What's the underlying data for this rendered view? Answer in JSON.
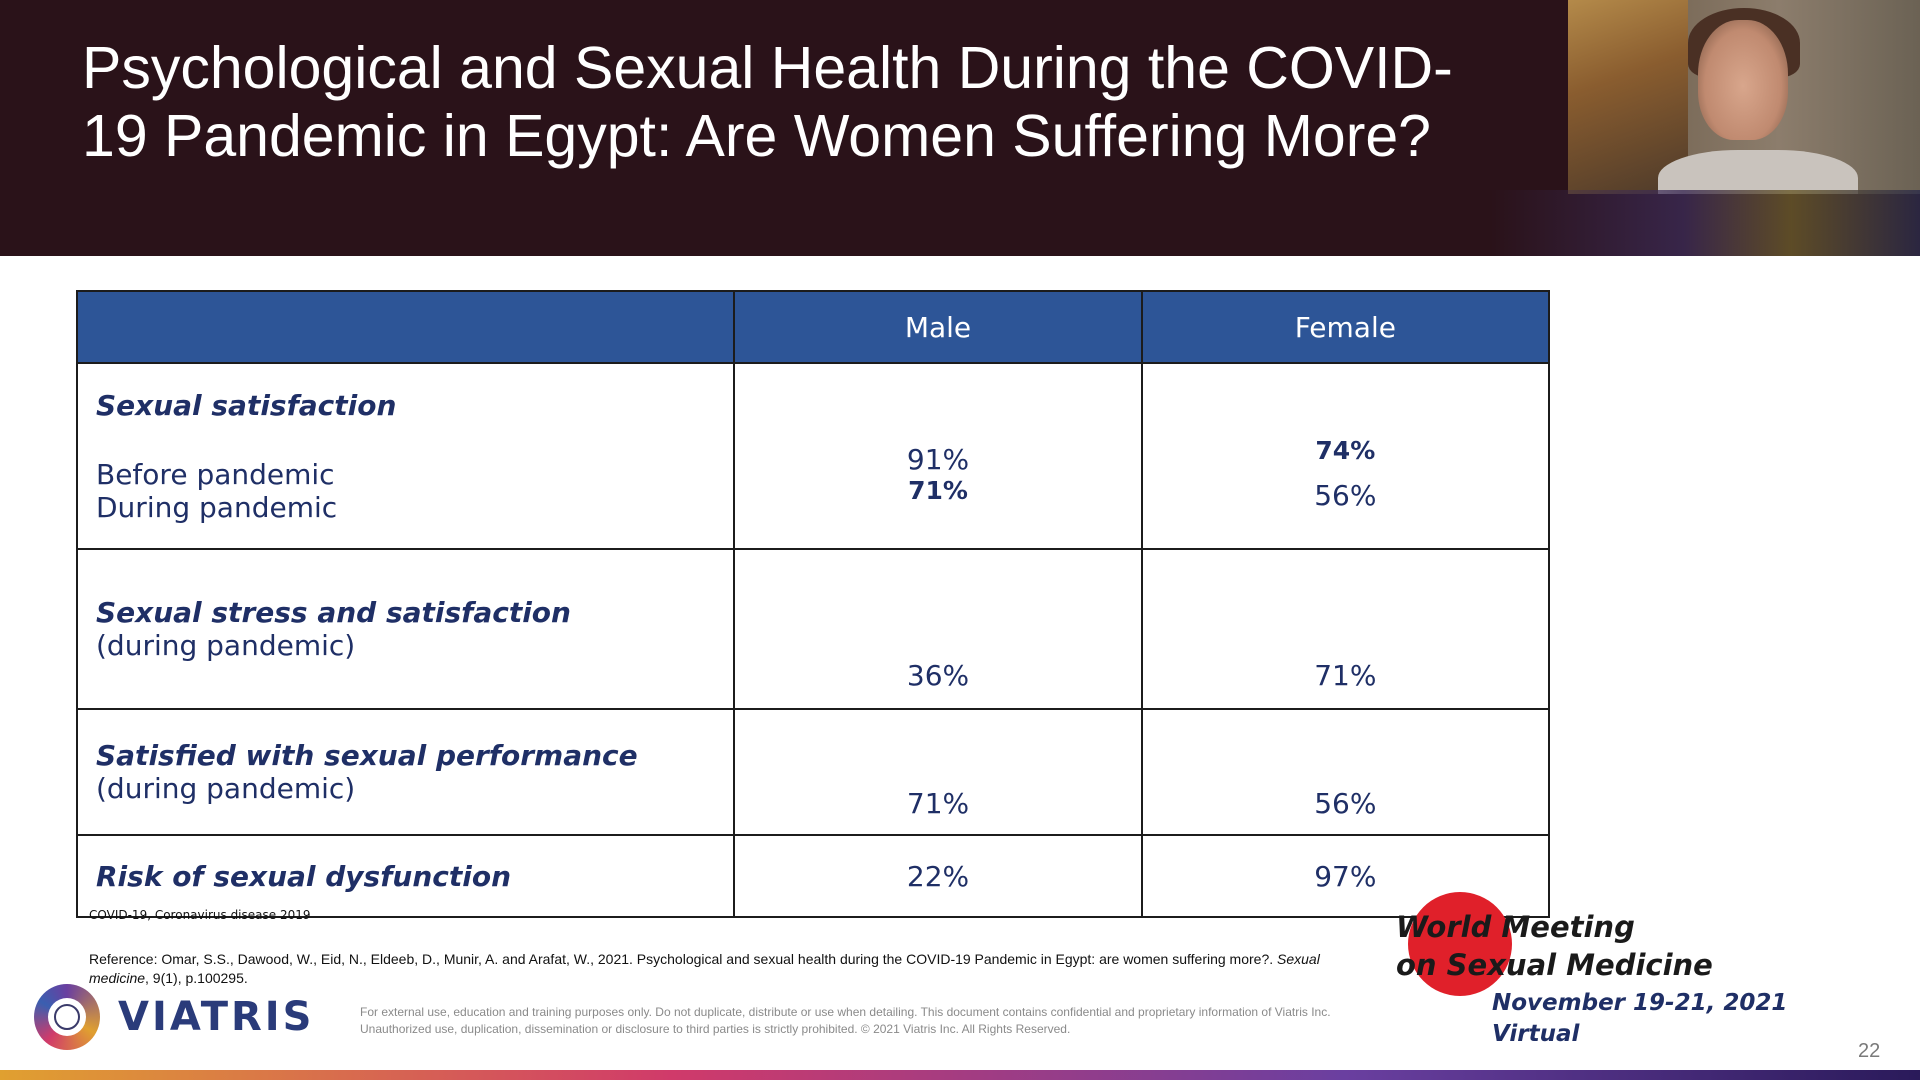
{
  "slide": {
    "title": "Psychological and Sexual Health During the COVID-19 Pandemic in Egypt: Are Women Suffering More?",
    "page_number": "22"
  },
  "table": {
    "headers": [
      "",
      "Male",
      "Female"
    ],
    "rows": [
      {
        "category": "Sexual satisfaction",
        "sublabels": [
          "Before pandemic",
          "During pandemic"
        ],
        "male": [
          "91%",
          "71%"
        ],
        "female": [
          "74%",
          "56%"
        ]
      },
      {
        "category": "Sexual stress and satisfaction",
        "sublabel": "(during pandemic)",
        "male": "36%",
        "female": "71%"
      },
      {
        "category": "Satisfied with sexual performance",
        "sublabel": "(during pandemic)",
        "male": "71%",
        "female": "56%"
      },
      {
        "category": "Risk of sexual dysfunction",
        "male": "22%",
        "female": "97%"
      }
    ]
  },
  "footnotes": {
    "abbreviation": "COVID-19, Coronavirus disease 2019",
    "reference_prefix": "Reference: Omar, S.S., Dawood, W., Eid, N., Eldeeb, D., Munir, A. and Arafat, W., 2021. Psychological and sexual health during the COVID-19 Pandemic in Egypt: are women suffering more?. ",
    "reference_journal": "Sexual medicine",
    "reference_suffix": ", 9(1), p.100295.",
    "disclaimer": "For external use, education and training purposes only. Do not duplicate, distribute or use when detailing. This document contains confidential and proprietary information of Viatris Inc. Unauthorized use, duplication, dissemination or disclosure to third parties is strictly prohibited. © 2021 Viatris Inc. All Rights Reserved."
  },
  "branding": {
    "logo_text": "VIATRIS",
    "logo_icon": "globe-icon",
    "event_line1": "World Meeting",
    "event_line2": "on Sexual Medicine",
    "event_date": "November 19-21, 2021",
    "event_mode": "Virtual"
  },
  "colors": {
    "header_bg": "#2a1219",
    "table_header_bg": "#2d5597",
    "table_text": "#1f2f66",
    "event_dot": "#e0202a"
  }
}
